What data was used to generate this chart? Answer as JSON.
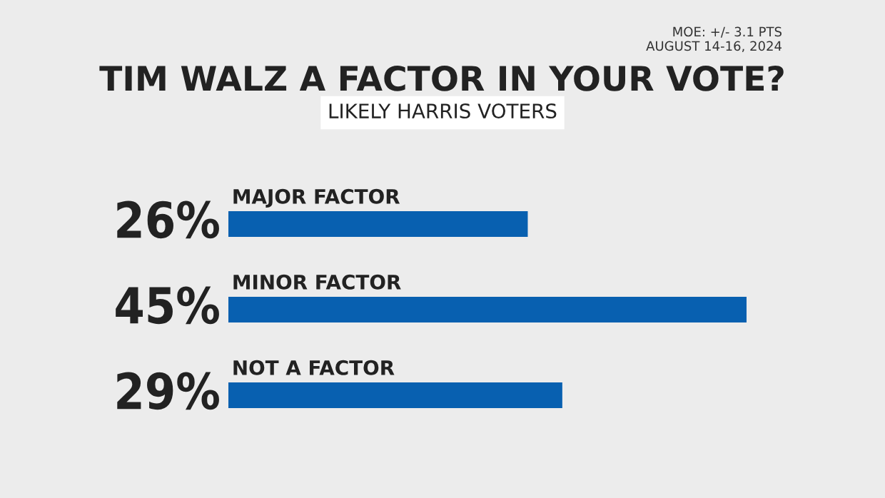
{
  "chart_data": {
    "type": "bar",
    "orientation": "horizontal",
    "title": "TIM WALZ A FACTOR IN YOUR VOTE?",
    "subtitle": "LIKELY HARRIS VOTERS",
    "categories": [
      "MAJOR FACTOR",
      "MINOR FACTOR",
      "NOT A FACTOR"
    ],
    "values": [
      26,
      45,
      29
    ],
    "value_labels": [
      "26%",
      "45%",
      "29%"
    ],
    "color": "#0860b0",
    "annotations": [
      "MOE: +/- 3.1 PTS",
      "AUGUST 14-16, 2024"
    ]
  }
}
